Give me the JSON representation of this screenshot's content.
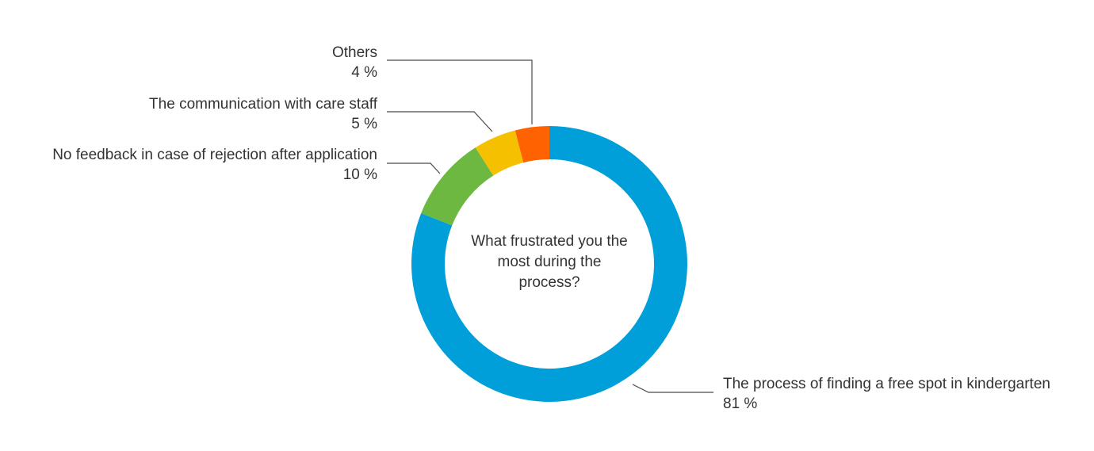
{
  "chart_data": {
    "type": "pie",
    "title": "What frustrated you the most during the process?",
    "title_lines": [
      "What frustrated you the",
      "most during the",
      "process?"
    ],
    "slices": [
      {
        "label": "The process of finding a free spot in kindergarten",
        "value": 81,
        "value_text": "81 %",
        "color": "#009fd9"
      },
      {
        "label": "No feedback in case of rejection after application",
        "value": 10,
        "value_text": "10 %",
        "color": "#6cb840"
      },
      {
        "label": "The communication with care staff",
        "value": 5,
        "value_text": "5 %",
        "color": "#f5c000"
      },
      {
        "label": "Others",
        "value": 4,
        "value_text": "4 %",
        "color": "#ff6200"
      }
    ],
    "donut": true,
    "start_angle": "12 o'clock, clockwise"
  }
}
